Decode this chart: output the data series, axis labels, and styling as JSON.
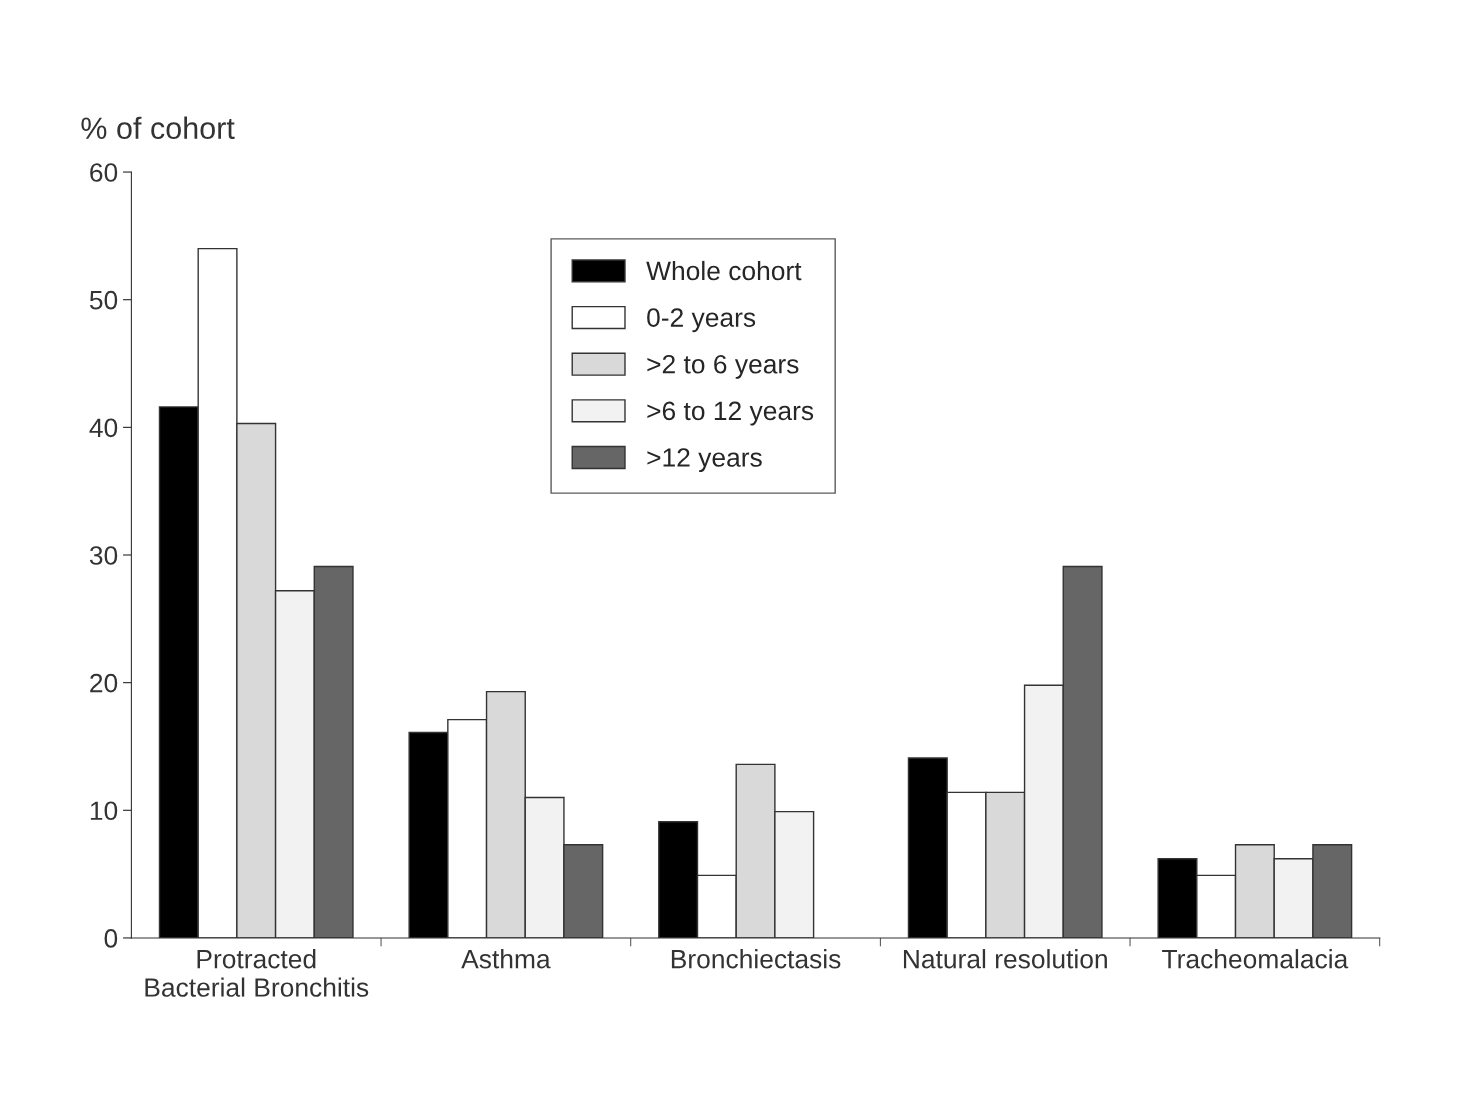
{
  "chart_data": {
    "type": "bar",
    "ylabel": "% of cohort",
    "categories": [
      "Protracted\nBacterial Bronchitis",
      "Asthma",
      "Bronchiectasis",
      "Natural resolution",
      "Tracheomalacia"
    ],
    "series": [
      {
        "name": "Whole cohort",
        "color": "#000000",
        "values": [
          41.6,
          16.1,
          9.1,
          14.1,
          6.2
        ]
      },
      {
        "name": "0-2 years",
        "color": "#ffffff",
        "values": [
          54.0,
          17.1,
          4.9,
          11.4,
          4.9
        ]
      },
      {
        "name": ">2 to 6 years",
        "color": "#d9d9d9",
        "values": [
          40.3,
          19.3,
          13.6,
          11.4,
          7.3
        ]
      },
      {
        "name": ">6 to 12 years",
        "color": "#f2f2f2",
        "values": [
          27.2,
          11.0,
          9.9,
          19.8,
          6.2
        ]
      },
      {
        "name": ">12 years",
        "color": "#666666",
        "values": [
          29.1,
          7.3,
          null,
          29.1,
          7.3
        ]
      }
    ],
    "ylim": [
      0,
      60
    ],
    "yticks": [
      0,
      10,
      20,
      30,
      40,
      50,
      60
    ],
    "grid": false,
    "legend": "top"
  }
}
